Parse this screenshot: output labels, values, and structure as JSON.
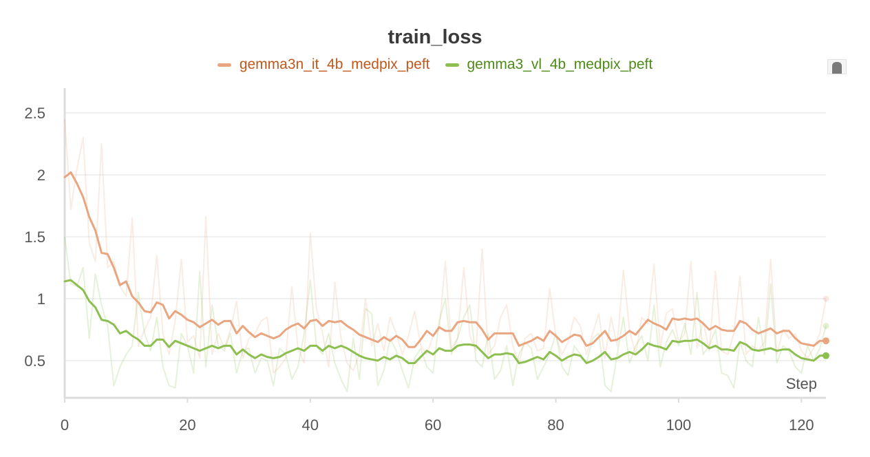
{
  "chart_data": {
    "type": "line",
    "title": "train_loss",
    "xlabel": "Step",
    "ylabel": "",
    "xlim": [
      0,
      124
    ],
    "ylim": [
      0.2,
      2.7
    ],
    "x_ticks": [
      0,
      20,
      40,
      60,
      80,
      100,
      120
    ],
    "y_ticks": [
      0.5,
      1,
      1.5,
      2,
      2.5
    ],
    "y_tick_labels": [
      "0.5",
      "1",
      "1.5",
      "2",
      "2.5"
    ],
    "grid": true,
    "legend_position": "top-center",
    "series": [
      {
        "name": "gemma3n_it_4b_medpix_peft",
        "color": "#e8a57f",
        "label_color": "#c0581c",
        "x": [
          0,
          1,
          2,
          3,
          4,
          5,
          6,
          7,
          8,
          9,
          10,
          11,
          12,
          13,
          14,
          15,
          16,
          17,
          18,
          19,
          20,
          21,
          22,
          23,
          24,
          25,
          26,
          27,
          28,
          29,
          30,
          31,
          32,
          33,
          34,
          35,
          36,
          37,
          38,
          39,
          40,
          41,
          42,
          43,
          44,
          45,
          46,
          47,
          48,
          49,
          50,
          51,
          52,
          53,
          54,
          55,
          56,
          57,
          58,
          59,
          60,
          61,
          62,
          63,
          64,
          65,
          66,
          67,
          68,
          69,
          70,
          71,
          72,
          73,
          74,
          75,
          76,
          77,
          78,
          79,
          80,
          81,
          82,
          83,
          84,
          85,
          86,
          87,
          88,
          89,
          90,
          91,
          92,
          93,
          94,
          95,
          96,
          97,
          98,
          99,
          100,
          101,
          102,
          103,
          104,
          105,
          106,
          107,
          108,
          109,
          110,
          111,
          112,
          113,
          114,
          115,
          116,
          117,
          118,
          119,
          120,
          121,
          122,
          123,
          124
        ],
        "smoothed": [
          1.98,
          2.02,
          1.93,
          1.82,
          1.66,
          1.55,
          1.37,
          1.36,
          1.25,
          1.11,
          1.14,
          1.02,
          0.97,
          0.9,
          0.89,
          0.97,
          0.95,
          0.84,
          0.9,
          0.87,
          0.83,
          0.81,
          0.77,
          0.8,
          0.83,
          0.79,
          0.82,
          0.82,
          0.72,
          0.78,
          0.73,
          0.69,
          0.72,
          0.7,
          0.68,
          0.7,
          0.75,
          0.78,
          0.8,
          0.76,
          0.82,
          0.83,
          0.78,
          0.82,
          0.81,
          0.82,
          0.78,
          0.75,
          0.71,
          0.69,
          0.67,
          0.65,
          0.69,
          0.66,
          0.7,
          0.67,
          0.61,
          0.61,
          0.67,
          0.74,
          0.7,
          0.77,
          0.74,
          0.74,
          0.81,
          0.82,
          0.81,
          0.81,
          0.75,
          0.67,
          0.72,
          0.72,
          0.72,
          0.72,
          0.62,
          0.64,
          0.66,
          0.69,
          0.66,
          0.74,
          0.7,
          0.65,
          0.68,
          0.71,
          0.7,
          0.62,
          0.64,
          0.69,
          0.74,
          0.66,
          0.67,
          0.7,
          0.74,
          0.71,
          0.77,
          0.83,
          0.8,
          0.78,
          0.75,
          0.84,
          0.83,
          0.84,
          0.83,
          0.84,
          0.8,
          0.75,
          0.78,
          0.75,
          0.74,
          0.74,
          0.82,
          0.8,
          0.75,
          0.72,
          0.74,
          0.76,
          0.72,
          0.74,
          0.74,
          0.68,
          0.64,
          0.63,
          0.62,
          0.66,
          0.66
        ],
        "raw": [
          2.45,
          1.72,
          2.05,
          2.3,
          1.45,
          1.3,
          2.25,
          1.25,
          1.3,
          1.1,
          1.02,
          1.65,
          0.62,
          0.75,
          0.85,
          1.35,
          0.72,
          0.55,
          0.82,
          1.32,
          0.65,
          0.7,
          0.52,
          1.66,
          0.55,
          0.72,
          0.6,
          0.75,
          0.98,
          0.52,
          0.68,
          0.72,
          0.82,
          0.85,
          0.4,
          0.45,
          0.52,
          1.1,
          0.6,
          0.48,
          1.53,
          0.92,
          0.72,
          0.45,
          1.13,
          0.68,
          0.48,
          0.42,
          0.55,
          1.0,
          0.62,
          0.8,
          0.58,
          0.85,
          0.72,
          0.55,
          0.7,
          0.9,
          0.62,
          0.55,
          0.7,
          0.75,
          1.3,
          0.6,
          0.68,
          1.25,
          0.7,
          0.58,
          1.4,
          0.55,
          0.62,
          0.85,
          0.95,
          0.62,
          0.48,
          0.68,
          0.72,
          0.58,
          0.6,
          1.08,
          0.7,
          0.55,
          0.65,
          0.85,
          0.78,
          0.55,
          0.72,
          0.88,
          0.52,
          0.85,
          0.62,
          1.23,
          0.75,
          0.55,
          0.85,
          0.8,
          1.28,
          0.6,
          0.88,
          0.92,
          0.65,
          0.72,
          1.3,
          0.6,
          0.82,
          0.58,
          1.22,
          0.58,
          0.55,
          0.72,
          1.18,
          0.55,
          0.62,
          0.58,
          0.65,
          1.32,
          0.55,
          0.75,
          0.68,
          0.72,
          0.58,
          0.52,
          0.6,
          0.72,
          1.0
        ]
      },
      {
        "name": "gemma3_vl_4b_medpix_peft",
        "color": "#8dbf50",
        "label_color": "#4e8a18",
        "x": [
          0,
          1,
          2,
          3,
          4,
          5,
          6,
          7,
          8,
          9,
          10,
          11,
          12,
          13,
          14,
          15,
          16,
          17,
          18,
          19,
          20,
          21,
          22,
          23,
          24,
          25,
          26,
          27,
          28,
          29,
          30,
          31,
          32,
          33,
          34,
          35,
          36,
          37,
          38,
          39,
          40,
          41,
          42,
          43,
          44,
          45,
          46,
          47,
          48,
          49,
          50,
          51,
          52,
          53,
          54,
          55,
          56,
          57,
          58,
          59,
          60,
          61,
          62,
          63,
          64,
          65,
          66,
          67,
          68,
          69,
          70,
          71,
          72,
          73,
          74,
          75,
          76,
          77,
          78,
          79,
          80,
          81,
          82,
          83,
          84,
          85,
          86,
          87,
          88,
          89,
          90,
          91,
          92,
          93,
          94,
          95,
          96,
          97,
          98,
          99,
          100,
          101,
          102,
          103,
          104,
          105,
          106,
          107,
          108,
          109,
          110,
          111,
          112,
          113,
          114,
          115,
          116,
          117,
          118,
          119,
          120,
          121,
          122,
          123,
          124
        ],
        "smoothed": [
          1.14,
          1.15,
          1.11,
          1.07,
          0.98,
          0.93,
          0.83,
          0.82,
          0.79,
          0.72,
          0.74,
          0.7,
          0.67,
          0.62,
          0.62,
          0.67,
          0.67,
          0.61,
          0.66,
          0.64,
          0.62,
          0.6,
          0.58,
          0.6,
          0.62,
          0.6,
          0.62,
          0.62,
          0.55,
          0.59,
          0.55,
          0.52,
          0.55,
          0.53,
          0.52,
          0.53,
          0.56,
          0.58,
          0.6,
          0.58,
          0.62,
          0.62,
          0.58,
          0.62,
          0.6,
          0.62,
          0.6,
          0.57,
          0.54,
          0.52,
          0.51,
          0.5,
          0.53,
          0.51,
          0.54,
          0.52,
          0.48,
          0.48,
          0.53,
          0.58,
          0.55,
          0.6,
          0.58,
          0.58,
          0.62,
          0.63,
          0.63,
          0.62,
          0.57,
          0.52,
          0.55,
          0.55,
          0.56,
          0.55,
          0.48,
          0.49,
          0.51,
          0.53,
          0.51,
          0.57,
          0.54,
          0.5,
          0.53,
          0.55,
          0.54,
          0.48,
          0.5,
          0.53,
          0.57,
          0.51,
          0.52,
          0.55,
          0.57,
          0.55,
          0.59,
          0.64,
          0.62,
          0.61,
          0.59,
          0.66,
          0.65,
          0.66,
          0.66,
          0.67,
          0.64,
          0.6,
          0.62,
          0.59,
          0.59,
          0.58,
          0.65,
          0.63,
          0.59,
          0.58,
          0.59,
          0.6,
          0.58,
          0.59,
          0.59,
          0.55,
          0.52,
          0.51,
          0.5,
          0.54,
          0.54
        ],
        "raw": [
          1.5,
          1.12,
          1.1,
          1.25,
          0.68,
          1.2,
          0.95,
          0.78,
          0.3,
          0.45,
          0.55,
          0.62,
          1.05,
          0.72,
          0.58,
          0.85,
          0.45,
          0.3,
          0.28,
          0.72,
          0.62,
          0.4,
          1.22,
          0.45,
          0.95,
          0.62,
          0.58,
          0.72,
          0.4,
          0.58,
          0.6,
          0.4,
          0.52,
          0.5,
          0.3,
          0.6,
          0.55,
          0.35,
          0.45,
          0.72,
          1.15,
          0.62,
          0.55,
          0.72,
          0.48,
          0.35,
          0.25,
          0.68,
          0.35,
          0.92,
          0.88,
          0.3,
          0.42,
          0.68,
          0.58,
          0.42,
          0.28,
          0.52,
          0.6,
          0.45,
          0.4,
          0.82,
          1.0,
          0.55,
          0.68,
          0.85,
          0.95,
          0.5,
          0.45,
          0.72,
          0.35,
          0.42,
          0.62,
          0.3,
          0.55,
          0.65,
          0.6,
          0.35,
          0.45,
          0.55,
          0.72,
          0.45,
          0.38,
          0.62,
          0.55,
          0.48,
          0.68,
          0.72,
          0.3,
          0.25,
          0.55,
          0.85,
          0.48,
          0.62,
          0.7,
          0.5,
          0.95,
          0.45,
          0.65,
          0.75,
          0.62,
          0.8,
          0.55,
          1.05,
          0.55,
          0.62,
          0.75,
          0.4,
          0.38,
          0.28,
          0.65,
          0.5,
          0.45,
          0.85,
          0.55,
          1.12,
          0.48,
          0.62,
          0.58,
          0.45,
          0.4,
          0.62,
          0.5,
          0.6,
          0.78
        ]
      }
    ]
  }
}
